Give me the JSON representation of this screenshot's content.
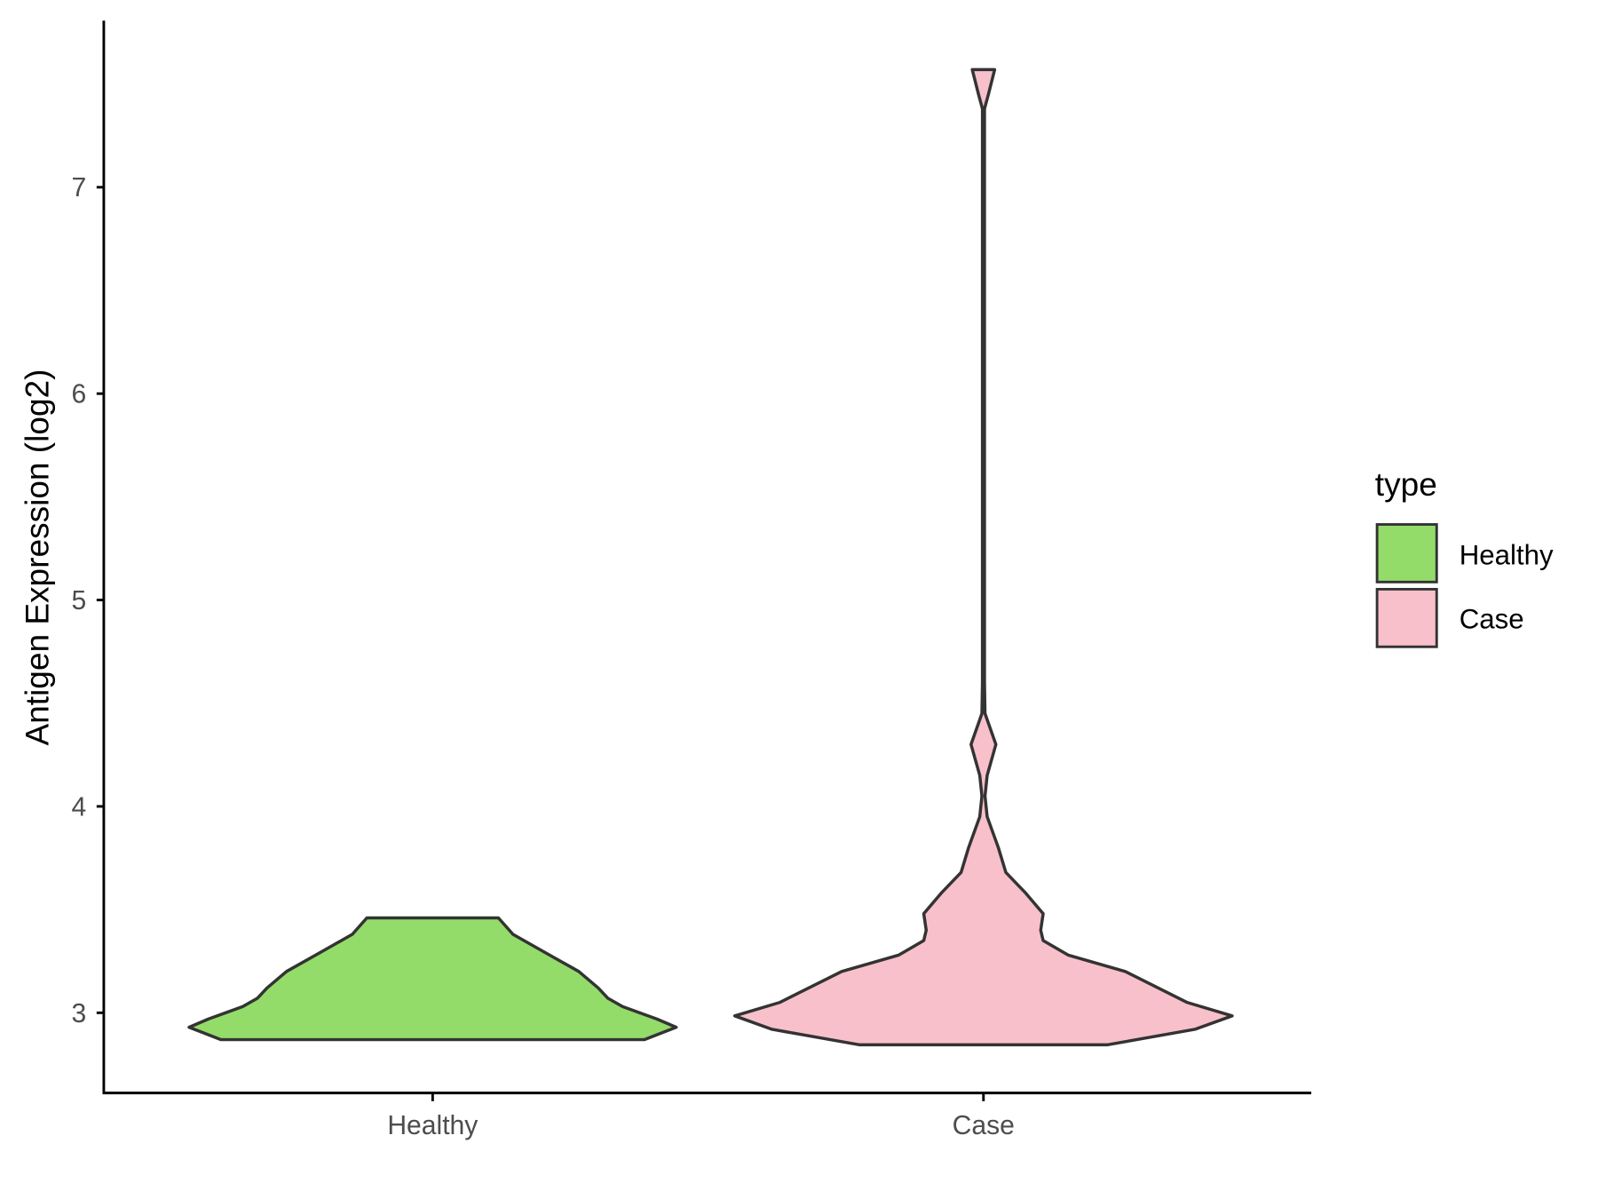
{
  "chart_data": {
    "type": "violin",
    "title": "",
    "xlabel": "",
    "ylabel": "Antigen Expression (log2)",
    "categories": [
      "Healthy",
      "Case"
    ],
    "y_ticks": [
      "3",
      "4",
      "5",
      "6",
      "7"
    ],
    "y_tick_values": [
      3,
      4,
      5,
      6,
      7
    ],
    "ylim": [
      2.6,
      7.8
    ],
    "grid": false,
    "legend": {
      "title": "type",
      "position": "right",
      "entries": [
        "Healthy",
        "Case"
      ]
    },
    "series": [
      {
        "name": "Healthy",
        "color": "#93DC6A",
        "min": 2.87,
        "max": 3.46,
        "density_profile": {
          "y": [
            2.87,
            2.93,
            2.97,
            3.03,
            3.07,
            3.12,
            3.2,
            3.3,
            3.38,
            3.46
          ],
          "relative_width": [
            0.87,
            1.0,
            0.92,
            0.78,
            0.72,
            0.68,
            0.6,
            0.45,
            0.33,
            0.27
          ]
        }
      },
      {
        "name": "Case",
        "color": "#F8C0CB",
        "min": 2.845,
        "max": 7.57,
        "density_profile": {
          "y": [
            2.845,
            2.92,
            2.985,
            3.05,
            3.2,
            3.28,
            3.35,
            3.4,
            3.48,
            3.58,
            3.68,
            3.8,
            3.95,
            4.05,
            4.15,
            4.3,
            4.45,
            4.6,
            7.38,
            7.45,
            7.57
          ],
          "relative_width": [
            0.5,
            0.85,
            1.0,
            0.82,
            0.57,
            0.34,
            0.24,
            0.23,
            0.24,
            0.17,
            0.09,
            0.06,
            0.015,
            0.006,
            0.015,
            0.05,
            0.006,
            0.004,
            0.004,
            0.02,
            0.045
          ]
        }
      }
    ]
  }
}
